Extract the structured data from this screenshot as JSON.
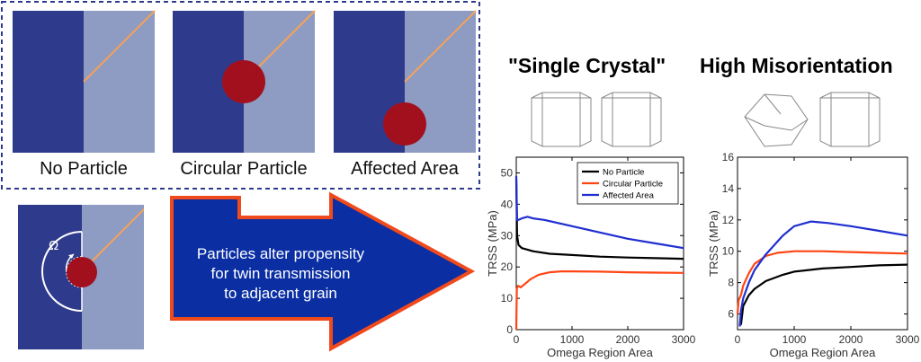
{
  "panels": {
    "labels": [
      "No Particle",
      "Circular Particle",
      "Affected Area"
    ],
    "omega_symbol": "Ω"
  },
  "arrow": {
    "lines": [
      "Particles alter propensity",
      "for twin transmission",
      "to adjacent grain"
    ]
  },
  "columns": {
    "left_title": "\"Single Crystal\"",
    "right_title": "High Misorientation"
  },
  "colors": {
    "grain_dark": "#2e3a8c",
    "grain_light": "#8e9bc2",
    "particle": "#a3101d",
    "twin_line": "#f5a25a",
    "arrow_fill": "#0b2fa3",
    "arrow_border": "#f04a1c",
    "series_black": "#000000",
    "series_red": "#ff4513",
    "series_blue": "#1f2fd0"
  },
  "chart_data": [
    {
      "type": "line",
      "xlabel": "Omega Region Area",
      "ylabel": "TRSS (MPa)",
      "xlim": [
        0,
        3000
      ],
      "ylim": [
        0,
        55
      ],
      "xticks": [
        0,
        1000,
        2000,
        3000
      ],
      "yticks": [
        0,
        10,
        20,
        30,
        40,
        50
      ],
      "legend_position": "top-right",
      "series": [
        {
          "name": "No Particle",
          "color": "#000000",
          "x": [
            0,
            15,
            40,
            100,
            300,
            600,
            1000,
            1500,
            2000,
            2500,
            3000
          ],
          "y": [
            48,
            30,
            27,
            26,
            25,
            24.2,
            23.8,
            23.3,
            23,
            22.8,
            22.6
          ]
        },
        {
          "name": "Circular Particle",
          "color": "#ff4513",
          "x": [
            0,
            10,
            30,
            80,
            150,
            250,
            400,
            600,
            800,
            1000,
            1500,
            2000,
            2500,
            3000
          ],
          "y": [
            0,
            13,
            14,
            13.5,
            14.5,
            16,
            17.5,
            18.3,
            18.6,
            18.6,
            18.5,
            18.3,
            18.2,
            18.1
          ]
        },
        {
          "name": "Affected Area",
          "color": "#1f2fd0",
          "x": [
            0,
            15,
            40,
            100,
            200,
            300,
            500,
            1000,
            1500,
            2000,
            2500,
            3000
          ],
          "y": [
            49,
            35,
            35,
            35.5,
            36,
            35.5,
            35,
            33,
            31,
            29,
            27.5,
            26
          ]
        }
      ]
    },
    {
      "type": "line",
      "xlabel": "Omega Region Area",
      "ylabel": "TRSS (MPa)",
      "xlim": [
        0,
        3000
      ],
      "ylim": [
        5,
        16
      ],
      "xticks": [
        0,
        1000,
        2000,
        3000
      ],
      "yticks": [
        6,
        8,
        10,
        12,
        14,
        16
      ],
      "series": [
        {
          "name": "No Particle",
          "color": "#000000",
          "x": [
            60,
            100,
            200,
            300,
            500,
            800,
            1000,
            1500,
            2000,
            2500,
            3000
          ],
          "y": [
            5.3,
            6.5,
            7.2,
            7.6,
            8.1,
            8.5,
            8.7,
            8.9,
            9.0,
            9.1,
            9.15
          ]
        },
        {
          "name": "Circular Particle",
          "color": "#ff4513",
          "x": [
            0,
            20,
            60,
            100,
            200,
            300,
            500,
            700,
            1000,
            1500,
            2000,
            2500,
            3000
          ],
          "y": [
            6.0,
            6.9,
            7.2,
            7.8,
            8.6,
            9.2,
            9.7,
            9.9,
            10.0,
            10.0,
            9.95,
            9.9,
            9.85
          ]
        },
        {
          "name": "Affected Area",
          "color": "#1f2fd0",
          "x": [
            40,
            60,
            100,
            200,
            300,
            500,
            800,
            1000,
            1300,
            1600,
            2000,
            2500,
            3000
          ],
          "y": [
            5.2,
            6.2,
            7.0,
            8.0,
            8.8,
            9.8,
            11.0,
            11.6,
            11.9,
            11.8,
            11.6,
            11.3,
            11.0
          ]
        }
      ]
    }
  ]
}
